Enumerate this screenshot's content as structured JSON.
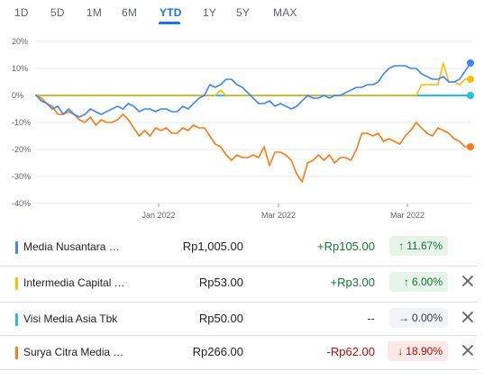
{
  "tabs": [
    {
      "label": "1D",
      "active": false
    },
    {
      "label": "5D",
      "active": false
    },
    {
      "label": "1M",
      "active": false
    },
    {
      "label": "6M",
      "active": false
    },
    {
      "label": "YTD",
      "active": true
    },
    {
      "label": "1Y",
      "active": false
    },
    {
      "label": "5Y",
      "active": false
    },
    {
      "label": "MAX",
      "active": false
    }
  ],
  "chart_data": {
    "type": "line",
    "y_ticks": [
      "20%",
      "10%",
      "0%",
      "-10%",
      "-20%",
      "-30%",
      "-40%"
    ],
    "ylim": [
      -40,
      20
    ],
    "x_tick_labels": [
      "Jan 2022",
      "Mar 2022",
      "Mar 2022"
    ],
    "grid": true,
    "series": [
      {
        "name": "Media Nusantara Citra",
        "color": "#4285f4",
        "values": [
          0,
          -2,
          -3,
          -5,
          -4,
          -7,
          -5,
          -7,
          -8,
          -7,
          -5,
          -6,
          -7,
          -6,
          -5,
          -4,
          -5,
          -3,
          -4,
          -6,
          -5,
          -5,
          -6,
          -5,
          -5,
          -6,
          -6,
          -4,
          -5,
          -3,
          -1,
          0,
          4,
          3,
          4,
          6,
          6,
          4,
          3,
          1,
          -1,
          -3,
          -3,
          -2,
          -4,
          -3,
          -4,
          -5,
          -4,
          -2,
          0,
          -1,
          -1,
          0,
          -1,
          0,
          0,
          1,
          2,
          3,
          3,
          4,
          4,
          5,
          8,
          10,
          11,
          11,
          11,
          10,
          10,
          8,
          7,
          6,
          6,
          7,
          5,
          5,
          6,
          9,
          12
        ]
      },
      {
        "name": "Intermedia Capital",
        "color": "#fbbc04",
        "values": [
          0,
          0,
          0,
          0,
          0,
          0,
          0,
          0,
          0,
          0,
          0,
          0,
          0,
          0,
          0,
          0,
          0,
          0,
          0,
          0,
          0,
          0,
          0,
          0,
          0,
          0,
          0,
          0,
          0,
          0,
          0,
          0,
          0,
          0,
          2,
          0,
          0,
          0,
          0,
          0,
          0,
          0,
          0,
          0,
          0,
          0,
          0,
          0,
          0,
          0,
          0,
          0,
          0,
          0,
          0,
          0,
          0,
          0,
          0,
          0,
          0,
          0,
          0,
          0,
          0,
          0,
          0,
          0,
          0,
          0,
          0,
          4,
          4,
          4,
          4,
          12,
          5,
          5,
          4,
          6,
          6
        ]
      },
      {
        "name": "Visi Media Asia Tbk",
        "color": "#24c1e0",
        "values": [
          0,
          0,
          0,
          0,
          0,
          0,
          0,
          0,
          0,
          0,
          0,
          0,
          0,
          0,
          0,
          0,
          0,
          0,
          0,
          0,
          0,
          0,
          0,
          0,
          0,
          0,
          0,
          0,
          0,
          0,
          0,
          0,
          0,
          0,
          0,
          0,
          0,
          0,
          0,
          0,
          0,
          0,
          0,
          0,
          0,
          0,
          0,
          0,
          0,
          0,
          0,
          0,
          0,
          0,
          0,
          0,
          0,
          0,
          0,
          0,
          0,
          0,
          0,
          0,
          0,
          0,
          0,
          0,
          0,
          0,
          0,
          0,
          0,
          0,
          0,
          0,
          0,
          0,
          0,
          0,
          0
        ]
      },
      {
        "name": "Surya Citra Media",
        "color": "#fa7b17",
        "values": [
          0,
          -1,
          -3,
          -4,
          -7,
          -7,
          -6,
          -7,
          -9,
          -10,
          -8,
          -11,
          -9,
          -10,
          -10,
          -9,
          -7,
          -9,
          -12,
          -15,
          -13,
          -15,
          -12,
          -13,
          -12,
          -14,
          -14,
          -12,
          -13,
          -11,
          -12,
          -12,
          -15,
          -18,
          -19,
          -22,
          -24,
          -22,
          -23,
          -23,
          -22,
          -23,
          -19,
          -26,
          -21,
          -21,
          -22,
          -24,
          -29,
          -32,
          -25,
          -24,
          -22,
          -24,
          -22,
          -25,
          -23,
          -23,
          -24,
          -20,
          -14,
          -14,
          -15,
          -14,
          -17,
          -16,
          -17,
          -18,
          -15,
          -13,
          -10,
          -12,
          -14,
          -15,
          -12,
          -13,
          -14,
          -16,
          -17,
          -19,
          -19
        ]
      }
    ]
  },
  "stocks": [
    {
      "name": "Media Nusantara Citra",
      "price": "Rp1,005.00",
      "change": "+Rp105.00",
      "percent": "11.67%",
      "arrow": "↑",
      "direction": "up",
      "color": "#4285f4",
      "removable": false
    },
    {
      "name": "Intermedia Capital Tbk",
      "price": "Rp53.00",
      "change": "+Rp3.00",
      "percent": "6.00%",
      "arrow": "↑",
      "direction": "up",
      "color": "#fbbc04",
      "removable": true
    },
    {
      "name": "Visi Media Asia Tbk",
      "price": "Rp50.00",
      "change": "--",
      "percent": "0.00%",
      "arrow": "→",
      "direction": "flat",
      "color": "#24c1e0",
      "removable": true
    },
    {
      "name": "Surya Citra Media Tbk",
      "price": "Rp266.00",
      "change": "-Rp62.00",
      "percent": "18.90%",
      "arrow": "↓",
      "direction": "down",
      "color": "#fa7b17",
      "removable": true
    }
  ]
}
